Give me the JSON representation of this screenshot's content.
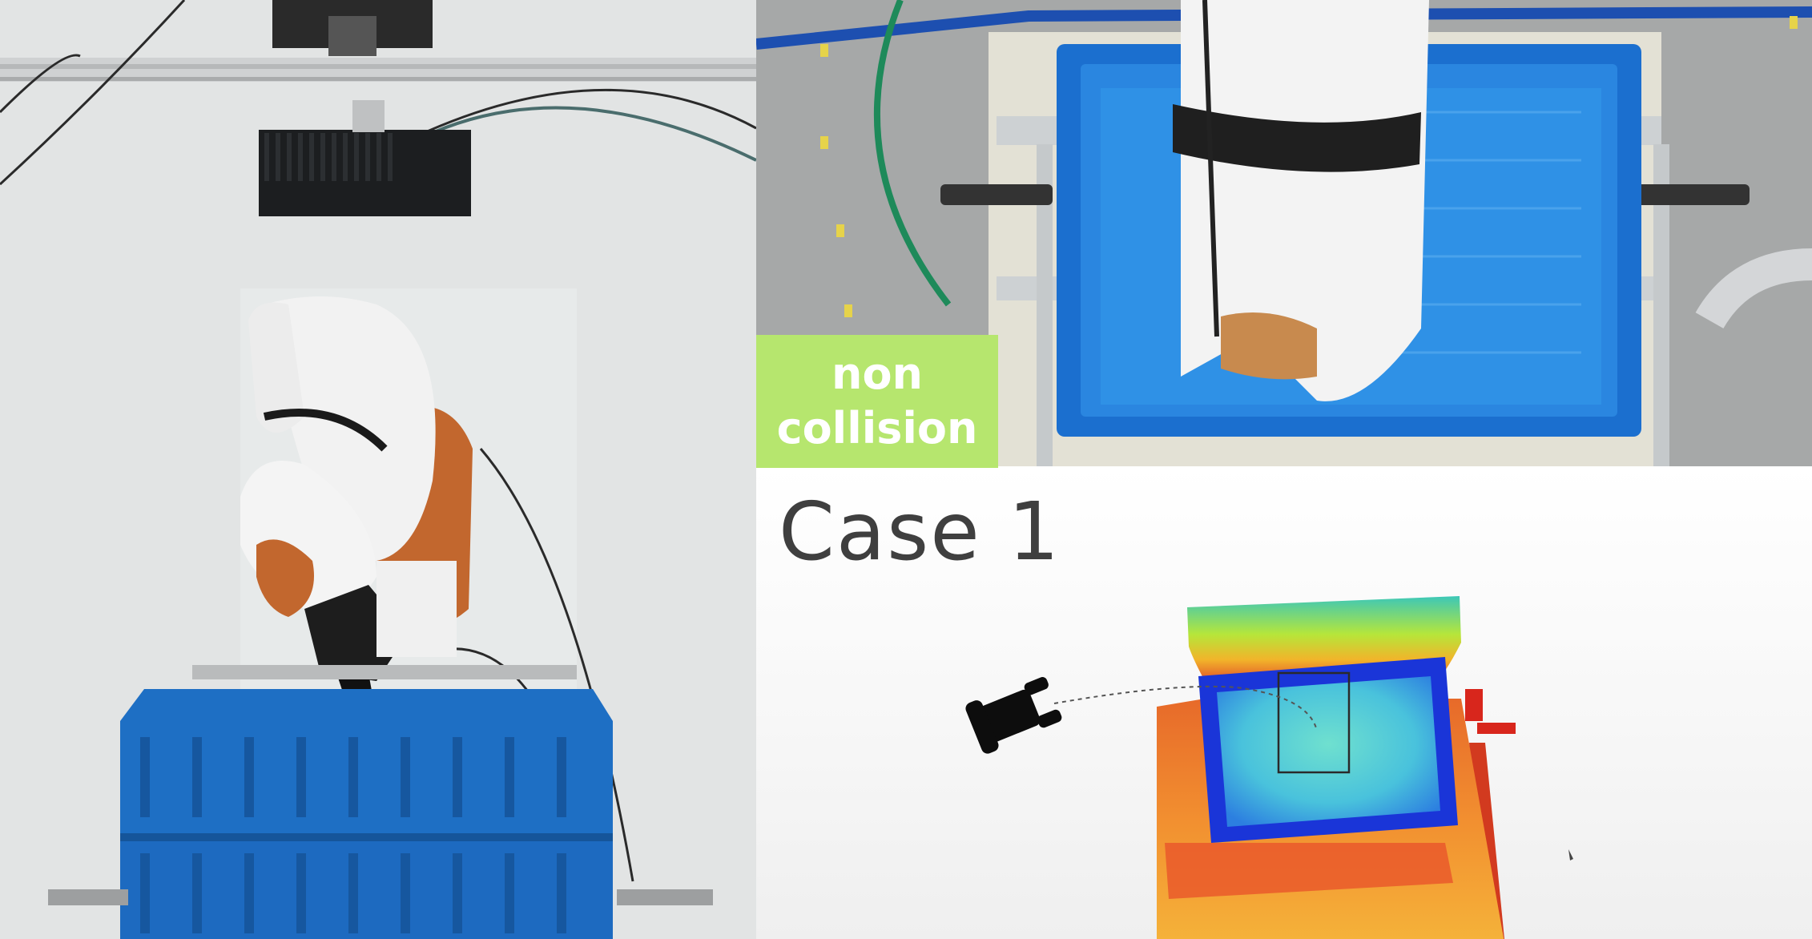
{
  "status": {
    "line1": "non",
    "line2": "collision"
  },
  "case_label": "Case 1",
  "colors": {
    "status_badge": "#b6e66e",
    "bin_blue": "#1e6fc4",
    "robot_white": "#f2f2f2",
    "robot_orange": "#c2672e",
    "case_text": "#3f3f3f"
  }
}
